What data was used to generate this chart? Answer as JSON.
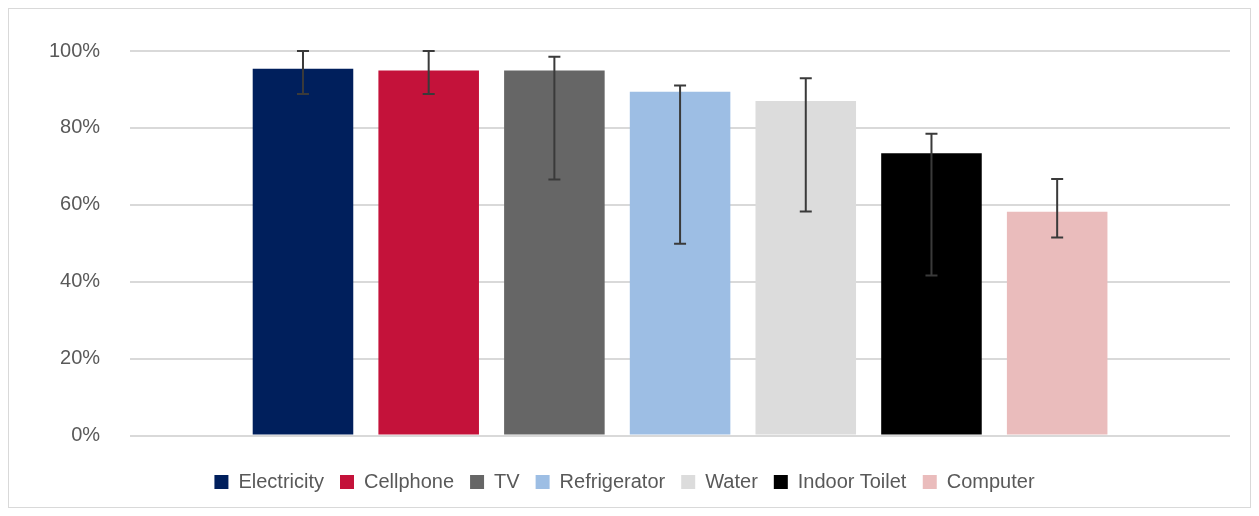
{
  "chart_data": {
    "type": "bar",
    "categories": [
      null
    ],
    "series": [
      {
        "name": "Electricity",
        "color": "#001f5c",
        "values": [
          95.4
        ],
        "errors": [
          [
            88.8,
            100
          ]
        ]
      },
      {
        "name": "Cellphone",
        "color": "#c4123a",
        "values": [
          94.9
        ],
        "errors": [
          [
            88.8,
            100
          ]
        ]
      },
      {
        "name": "TV",
        "color": "#666666",
        "values": [
          94.9
        ],
        "errors": [
          [
            66.6,
            98.5
          ]
        ]
      },
      {
        "name": "Refrigerator",
        "color": "#9dbee4",
        "values": [
          89.4
        ],
        "errors": [
          [
            49.9,
            91
          ]
        ]
      },
      {
        "name": "Water",
        "color": "#dcdcdc",
        "values": [
          87
        ],
        "errors": [
          [
            58.3,
            92.9
          ]
        ]
      },
      {
        "name": "Indoor Toilet",
        "color": "#000000",
        "values": [
          73.4
        ],
        "errors": [
          [
            41.6,
            78.5
          ]
        ]
      },
      {
        "name": "Computer",
        "color": "#eabcbc",
        "values": [
          58.2
        ],
        "errors": [
          [
            51.5,
            66.7
          ]
        ]
      }
    ],
    "ylim": [
      0,
      100
    ],
    "yticks": [
      {
        "value": 0,
        "label": "0%"
      },
      {
        "value": 20,
        "label": "20%"
      },
      {
        "value": 40,
        "label": "40%"
      },
      {
        "value": 60,
        "label": "60%"
      },
      {
        "value": 80,
        "label": "80%"
      },
      {
        "value": 100,
        "label": "100%"
      }
    ],
    "grid": "y",
    "legend": "bottom"
  }
}
